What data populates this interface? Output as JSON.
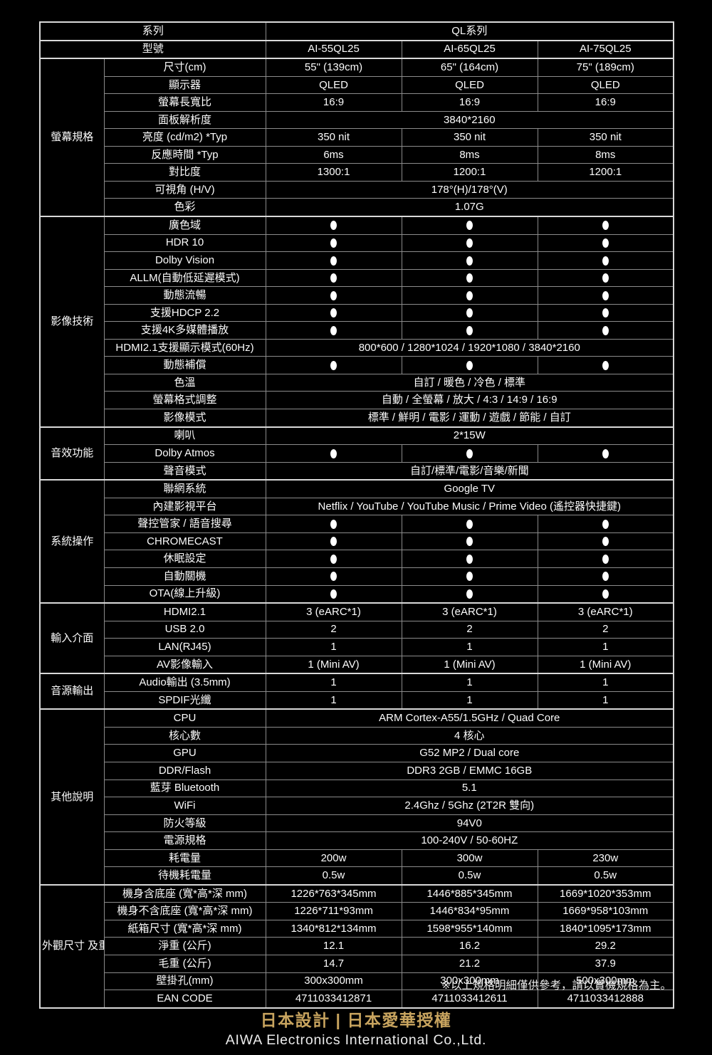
{
  "colors": {
    "background": "#000000",
    "text": "#fcfcfc",
    "border_thin": "#8b8b8b",
    "border_group": "#d9d9d9",
    "accent_gold": "#c8a45f"
  },
  "table": {
    "series_label": "系列",
    "series_value": "QL系列",
    "model_label": "型號",
    "models": [
      "AI-55QL25",
      "AI-65QL25",
      "AI-75QL25"
    ],
    "groups": [
      {
        "name": "螢幕規格",
        "rows": [
          {
            "label": "尺寸(cm)",
            "type": "cols",
            "values": [
              "55\" (139cm)",
              "65\" (164cm)",
              "75\" (189cm)"
            ]
          },
          {
            "label": "顯示器",
            "type": "cols",
            "values": [
              "QLED",
              "QLED",
              "QLED"
            ]
          },
          {
            "label": "螢幕長寬比",
            "type": "cols",
            "values": [
              "16:9",
              "16:9",
              "16:9"
            ]
          },
          {
            "label": "面板解析度",
            "type": "span",
            "value": "3840*2160"
          },
          {
            "label": "亮度 (cd/m2) *Typ",
            "type": "cols",
            "values": [
              "350 nit",
              "350 nit",
              "350 nit"
            ]
          },
          {
            "label": "反應時間 *Typ",
            "type": "cols",
            "values": [
              "6ms",
              "8ms",
              "8ms"
            ]
          },
          {
            "label": "對比度",
            "type": "cols",
            "values": [
              "1300:1",
              "1200:1",
              "1200:1"
            ]
          },
          {
            "label": "可視角 (H/V)",
            "type": "span",
            "value": "178°(H)/178°(V)"
          },
          {
            "label": "色彩",
            "type": "span",
            "value": "1.07G"
          }
        ]
      },
      {
        "name": "影像技術",
        "rows": [
          {
            "label": "廣色域",
            "type": "dots"
          },
          {
            "label": "HDR 10",
            "type": "dots"
          },
          {
            "label": "Dolby Vision",
            "type": "dots"
          },
          {
            "label": "ALLM(自動低延遲模式)",
            "type": "dots"
          },
          {
            "label": "動態流暢",
            "type": "dots"
          },
          {
            "label": "支援HDCP 2.2",
            "type": "dots"
          },
          {
            "label": "支援4K多媒體播放",
            "type": "dots"
          },
          {
            "label": "HDMI2.1支援顯示模式(60Hz)",
            "type": "span",
            "value": "800*600 / 1280*1024 / 1920*1080 / 3840*2160"
          },
          {
            "label": "動態補償",
            "type": "dots"
          },
          {
            "label": "色溫",
            "type": "span",
            "value": "自訂 / 暖色 / 冷色 / 標準"
          },
          {
            "label": "螢幕格式調整",
            "type": "span",
            "value": "自動 / 全螢幕 / 放大 / 4:3 / 14:9 / 16:9"
          },
          {
            "label": "影像模式",
            "type": "span",
            "value": "標準 / 鮮明 / 電影 / 運動 / 遊戲 / 節能 / 自訂"
          }
        ]
      },
      {
        "name": "音效功能",
        "rows": [
          {
            "label": "喇叭",
            "type": "span",
            "value": "2*15W"
          },
          {
            "label": "Dolby Atmos",
            "type": "dots"
          },
          {
            "label": "聲音模式",
            "type": "span",
            "value": "自訂/標準/電影/音樂/新聞"
          }
        ]
      },
      {
        "name": "系統操作",
        "rows": [
          {
            "label": "聯網系統",
            "type": "span",
            "value": "Google TV"
          },
          {
            "label": "內建影視平台",
            "type": "span",
            "value": "Netflix / YouTube / YouTube Music / Prime Video (遙控器快捷鍵)"
          },
          {
            "label": "聲控管家 / 語音搜尋",
            "type": "dots"
          },
          {
            "label": "CHROMECAST",
            "type": "dots"
          },
          {
            "label": "休眠設定",
            "type": "dots"
          },
          {
            "label": "自動關機",
            "type": "dots"
          },
          {
            "label": "OTA(線上升級)",
            "type": "dots"
          }
        ]
      },
      {
        "name": "輸入介面",
        "rows": [
          {
            "label": "HDMI2.1",
            "type": "cols",
            "values": [
              "3 (eARC*1)",
              "3 (eARC*1)",
              "3 (eARC*1)"
            ]
          },
          {
            "label": "USB 2.0",
            "type": "cols",
            "values": [
              "2",
              "2",
              "2"
            ]
          },
          {
            "label": "LAN(RJ45)",
            "type": "cols",
            "values": [
              "1",
              "1",
              "1"
            ]
          },
          {
            "label": "AV影像輸入",
            "type": "cols",
            "values": [
              "1 (Mini AV)",
              "1 (Mini AV)",
              "1 (Mini AV)"
            ]
          }
        ]
      },
      {
        "name": "音源輸出",
        "rows": [
          {
            "label": "Audio輸出 (3.5mm)",
            "type": "cols",
            "values": [
              "1",
              "1",
              "1"
            ]
          },
          {
            "label": "SPDIF光纖",
            "type": "cols",
            "values": [
              "1",
              "1",
              "1"
            ]
          }
        ]
      },
      {
        "name": "其他說明",
        "rows": [
          {
            "label": "CPU",
            "type": "span",
            "value": "ARM Cortex-A55/1.5GHz / Quad Core"
          },
          {
            "label": "核心數",
            "type": "span",
            "value": "4 核心"
          },
          {
            "label": "GPU",
            "type": "span",
            "value": "G52 MP2 / Dual core"
          },
          {
            "label": "DDR/Flash",
            "type": "span",
            "value": "DDR3 2GB / EMMC 16GB"
          },
          {
            "label": "藍芽 Bluetooth",
            "type": "span",
            "value": "5.1"
          },
          {
            "label": "WiFi",
            "type": "span",
            "value": "2.4Ghz / 5Ghz (2T2R 雙向)"
          },
          {
            "label": "防火等級",
            "type": "span",
            "value": "94V0"
          },
          {
            "label": "電源規格",
            "type": "span",
            "value": "100-240V / 50-60HZ"
          },
          {
            "label": "耗電量",
            "type": "cols",
            "values": [
              "200w",
              "300w",
              "230w"
            ]
          },
          {
            "label": "待機耗電量",
            "type": "cols",
            "values": [
              "0.5w",
              "0.5w",
              "0.5w"
            ]
          }
        ]
      },
      {
        "name": "外觀尺寸\n及重量",
        "rows": [
          {
            "label": "機身含底座 (寬*高*深 mm)",
            "type": "cols",
            "values": [
              "1226*763*345mm",
              "1446*885*345mm",
              "1669*1020*353mm"
            ]
          },
          {
            "label": "機身不含底座 (寬*高*深 mm)",
            "type": "cols",
            "values": [
              "1226*711*93mm",
              "1446*834*95mm",
              "1669*958*103mm"
            ]
          },
          {
            "label": "紙箱尺寸 (寬*高*深 mm)",
            "type": "cols",
            "values": [
              "1340*812*134mm",
              "1598*955*140mm",
              "1840*1095*173mm"
            ]
          },
          {
            "label": "淨重 (公斤)",
            "type": "cols",
            "values": [
              "12.1",
              "16.2",
              "29.2"
            ]
          },
          {
            "label": "毛重 (公斤)",
            "type": "cols",
            "values": [
              "14.7",
              "21.2",
              "37.9"
            ]
          },
          {
            "label": "壁掛孔(mm)",
            "type": "cols",
            "values": [
              "300x300mm",
              "300x300mm",
              "500x300mm"
            ]
          },
          {
            "label": "EAN CODE",
            "type": "cols",
            "values": [
              "4711033412871",
              "4711033412611",
              "4711033412888"
            ]
          }
        ]
      }
    ]
  },
  "footnote": "※以上規格明細僅供參考，請以實機規格為主。",
  "tagline": "日本設計 | 日本愛華授權",
  "company": "AIWA Electronics International Co.,Ltd."
}
